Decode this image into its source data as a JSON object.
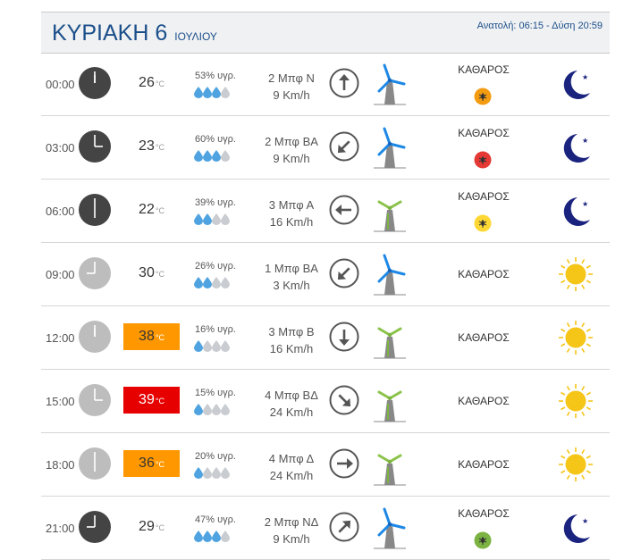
{
  "header": {
    "day": "ΚΥΡΙΑΚΗ 6",
    "month": "ΙΟΥΛΙΟΥ",
    "sun": "Ανατολή: 06:15 - Δύση 20:59"
  },
  "temp_unit": "°C",
  "rows": [
    {
      "time": "00:00",
      "temp": "26",
      "hum": "53% υγρ.",
      "drops": 3,
      "wind_bf": "2 Μπφ Ν",
      "wind_kmh": "9 Km/h",
      "arrow": "arrow-up-icon",
      "angle": 0,
      "mill": "blue",
      "sky": "ΚΑΘΑΡΟΣ",
      "mosquito": "orange",
      "weather": "moon-icon",
      "night": true,
      "heat": ""
    },
    {
      "time": "03:00",
      "temp": "23",
      "hum": "60% υγρ.",
      "drops": 3,
      "wind_bf": "2 Μπφ ΒΑ",
      "wind_kmh": "9 Km/h",
      "arrow": "arrow-down-left-icon",
      "angle": 225,
      "mill": "blue",
      "sky": "ΚΑΘΑΡΟΣ",
      "mosquito": "red",
      "weather": "moon-icon",
      "night": true,
      "heat": ""
    },
    {
      "time": "06:00",
      "temp": "22",
      "hum": "39% υγρ.",
      "drops": 2,
      "wind_bf": "3 Μπφ Α",
      "wind_kmh": "16 Km/h",
      "arrow": "arrow-left-icon",
      "angle": 270,
      "mill": "green",
      "sky": "ΚΑΘΑΡΟΣ",
      "mosquito": "yellow",
      "weather": "moon-icon",
      "night": true,
      "heat": ""
    },
    {
      "time": "09:00",
      "temp": "30",
      "hum": "26% υγρ.",
      "drops": 2,
      "wind_bf": "1 Μπφ ΒΑ",
      "wind_kmh": "3 Km/h",
      "arrow": "arrow-down-left-icon",
      "angle": 225,
      "mill": "blue",
      "sky": "ΚΑΘΑΡΟΣ",
      "mosquito": "",
      "weather": "sun-icon",
      "night": false,
      "heat": ""
    },
    {
      "time": "12:00",
      "temp": "38",
      "hum": "16% υγρ.",
      "drops": 1,
      "wind_bf": "3 Μπφ Β",
      "wind_kmh": "16 Km/h",
      "arrow": "arrow-down-icon",
      "angle": 180,
      "mill": "green",
      "sky": "ΚΑΘΑΡΟΣ",
      "mosquito": "",
      "weather": "sun-icon",
      "night": false,
      "heat": "hot"
    },
    {
      "time": "15:00",
      "temp": "39",
      "hum": "15% υγρ.",
      "drops": 1,
      "wind_bf": "4 Μπφ ΒΔ",
      "wind_kmh": "24 Km/h",
      "arrow": "arrow-down-right-icon",
      "angle": 135,
      "mill": "green",
      "sky": "ΚΑΘΑΡΟΣ",
      "mosquito": "",
      "weather": "sun-icon",
      "night": false,
      "heat": "red"
    },
    {
      "time": "18:00",
      "temp": "36",
      "hum": "20% υγρ.",
      "drops": 1,
      "wind_bf": "4 Μπφ Δ",
      "wind_kmh": "24 Km/h",
      "arrow": "arrow-right-icon",
      "angle": 90,
      "mill": "green",
      "sky": "ΚΑΘΑΡΟΣ",
      "mosquito": "",
      "weather": "sun-icon",
      "night": false,
      "heat": "hot"
    },
    {
      "time": "21:00",
      "temp": "29",
      "hum": "47% υγρ.",
      "drops": 3,
      "wind_bf": "2 Μπφ ΝΔ",
      "wind_kmh": "9 Km/h",
      "arrow": "arrow-up-right-icon",
      "angle": 45,
      "mill": "blue",
      "sky": "ΚΑΘΑΡΟΣ",
      "mosquito": "green",
      "weather": "moon-icon",
      "night": true,
      "heat": ""
    }
  ],
  "colors": {
    "accent": "#1b4f8a",
    "orange": "#ff9800",
    "red": "#e60000",
    "drop": "#4fa3e0",
    "moon": "#1a237e",
    "sun": "#f5c518"
  }
}
